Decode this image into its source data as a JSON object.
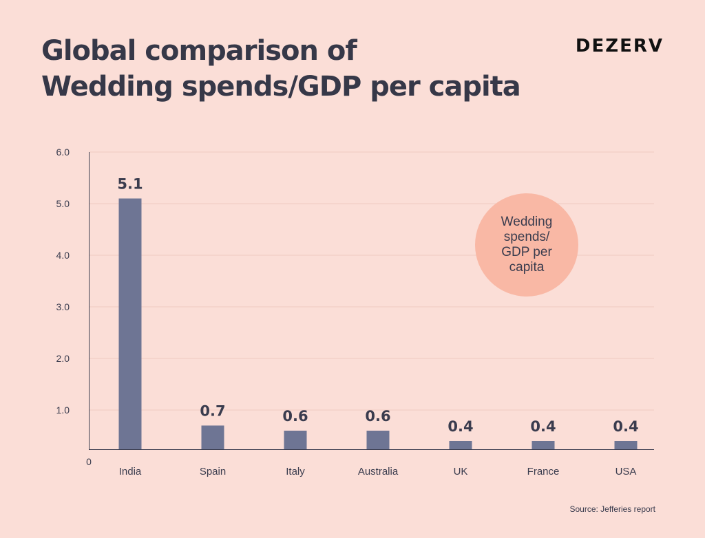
{
  "brand": "DEZERV",
  "title_lines": [
    "Global comparison of",
    "Wedding spends/GDP per capita"
  ],
  "source": "Source: Jefferies report",
  "colors": {
    "background": "#fbded7",
    "bar": "#6e7594",
    "legend_circle": "#f9b8a5",
    "text": "#3a3c4e"
  },
  "chart_data": {
    "type": "bar",
    "categories": [
      "India",
      "Spain",
      "Italy",
      "Australia",
      "UK",
      "France",
      "USA"
    ],
    "values": [
      5.1,
      0.7,
      0.6,
      0.6,
      0.4,
      0.4,
      0.4
    ],
    "value_labels": [
      "5.1",
      "0.7",
      "0.6",
      "0.6",
      "0.4",
      "0.4",
      "0.4"
    ],
    "series": [
      {
        "name": "Wedding spends/ GDP per capita",
        "values": [
          5.1,
          0.7,
          0.6,
          0.6,
          0.4,
          0.4,
          0.4
        ]
      }
    ],
    "y_ticks": [
      "6.0",
      "5.0",
      "4.0",
      "3.0",
      "2.0",
      "1.0"
    ],
    "y_origin_label": "0",
    "ylim": [
      0,
      6
    ],
    "grid": true,
    "legend_position": "right"
  }
}
